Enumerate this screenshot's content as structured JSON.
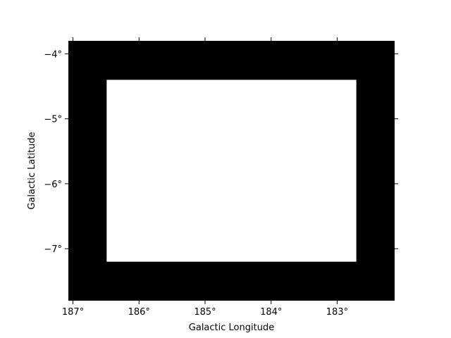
{
  "chart_data": {
    "type": "heatmap",
    "title": "",
    "xlabel": "Galactic Longitude",
    "ylabel": "Galactic Latitude",
    "xlim": [
      187.07,
      182.13
    ],
    "ylim": [
      -7.8,
      -3.8
    ],
    "x_ticks": [
      {
        "value": 187,
        "label": "187°"
      },
      {
        "value": 186,
        "label": "186°"
      },
      {
        "value": 185,
        "label": "185°"
      },
      {
        "value": 184,
        "label": "184°"
      },
      {
        "value": 183,
        "label": "183°"
      }
    ],
    "y_ticks": [
      {
        "value": -4,
        "label": "−4°"
      },
      {
        "value": -5,
        "label": "−5°"
      },
      {
        "value": -6,
        "label": "−6°"
      },
      {
        "value": -7,
        "label": "−7°"
      }
    ],
    "image": {
      "description_values": "binary mask: 1 outside inner rectangle, 0 inside",
      "outer_value": 1,
      "inner_value": 0,
      "inner_region": {
        "x_range": [
          186.49,
          182.71
        ],
        "y_range": [
          -7.2,
          -4.4
        ]
      }
    },
    "colors": {
      "value_1": "#000000",
      "value_0": "#ffffff"
    },
    "grid": false,
    "legend": "none"
  }
}
